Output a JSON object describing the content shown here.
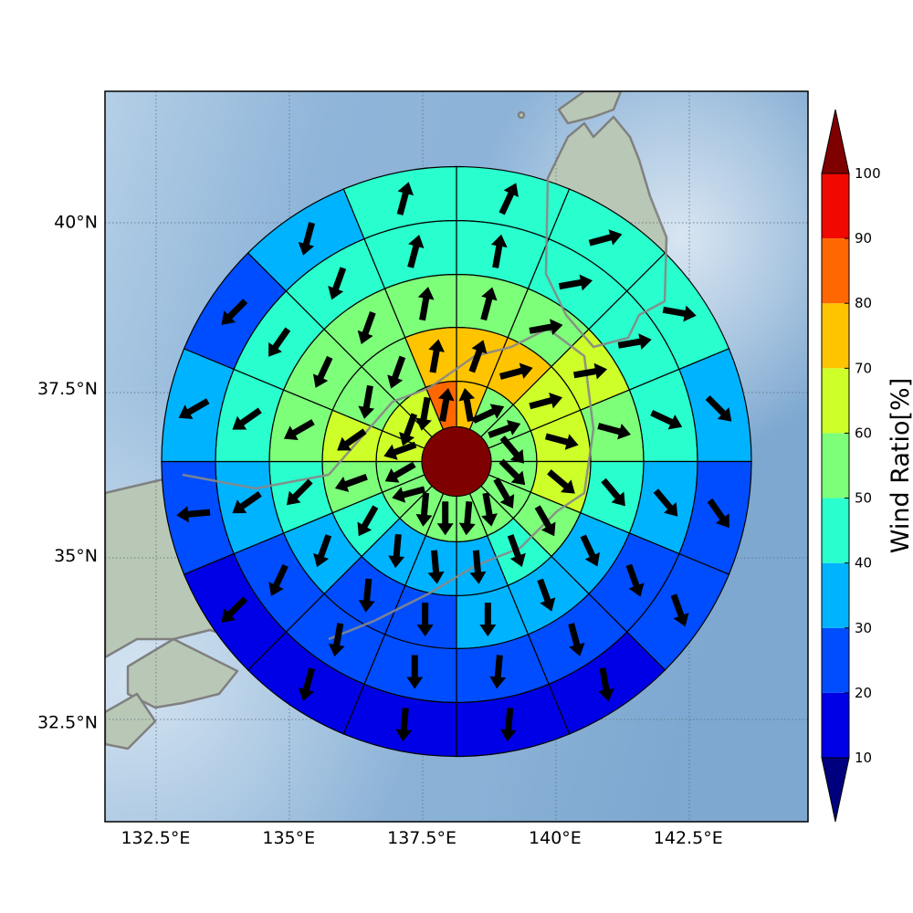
{
  "chart_data": {
    "type": "polar-sector-map",
    "colorbar": {
      "label": "Wind Ratio[%]",
      "ticks": [
        "10",
        "20",
        "30",
        "40",
        "50",
        "60",
        "70",
        "80",
        "90",
        "100"
      ],
      "levels": [
        10,
        20,
        30,
        40,
        50,
        60,
        70,
        80,
        90,
        100
      ],
      "under_color": "#00007f",
      "over_color": "#7f0000",
      "colors": [
        "#0000e6",
        "#004dff",
        "#00b3ff",
        "#29ffce",
        "#7dff7a",
        "#ceff29",
        "#ffc400",
        "#ff6800",
        "#f10800"
      ]
    },
    "xaxis": {
      "ticks": [
        "132.5°E",
        "135°E",
        "137.5°E",
        "140°E",
        "142.5°E"
      ],
      "values": [
        132.5,
        135,
        137.5,
        140,
        142.5
      ],
      "range": [
        131.55,
        144.75
      ]
    },
    "yaxis": {
      "ticks": [
        "32.5°N",
        "35°N",
        "37.5°N",
        "40°N"
      ],
      "values": [
        32.5,
        35,
        37.5,
        40
      ],
      "range": [
        31.0,
        41.95
      ]
    },
    "center": {
      "lon": 138.15,
      "lat": 36.4,
      "color": "#7f0000"
    },
    "sectors_per_ring": 16,
    "sector_order": "clockwise from north",
    "rings": [
      {
        "values": [
          75,
          55,
          55,
          55,
          55,
          55,
          55,
          55,
          55,
          55,
          55,
          55,
          65,
          65,
          65,
          85
        ]
      },
      {
        "values": [
          75,
          75,
          65,
          65,
          65,
          55,
          45,
          35,
          35,
          35,
          45,
          55,
          65,
          55,
          55,
          75
        ]
      },
      {
        "values": [
          55,
          55,
          65,
          55,
          45,
          35,
          35,
          35,
          25,
          25,
          35,
          45,
          55,
          55,
          55,
          55
        ]
      },
      {
        "values": [
          45,
          45,
          45,
          45,
          35,
          25,
          25,
          25,
          25,
          25,
          25,
          35,
          45,
          45,
          45,
          45
        ]
      },
      {
        "values": [
          45,
          45,
          45,
          35,
          25,
          25,
          15,
          15,
          15,
          15,
          15,
          25,
          35,
          25,
          35,
          45
        ]
      }
    ],
    "arrows": [
      [
        350,
        65,
        70,
        140,
        135,
        150,
        170,
        185,
        180,
        185,
        255,
        240,
        250,
        200,
        190,
        10
      ],
      [
        20,
        75,
        75,
        105,
        130,
        150,
        160,
        175,
        175,
        185,
        210,
        250,
        235,
        190,
        200,
        10
      ],
      [
        15,
        80,
        80,
        105,
        140,
        155,
        160,
        180,
        180,
        185,
        200,
        225,
        240,
        205,
        200,
        10
      ],
      [
        10,
        80,
        80,
        115,
        140,
        160,
        165,
        185,
        180,
        190,
        205,
        235,
        235,
        215,
        200,
        15
      ],
      [
        25,
        75,
        100,
        135,
        145,
        160,
        170,
        185,
        185,
        195,
        225,
        265,
        240,
        225,
        195,
        15
      ]
    ]
  }
}
